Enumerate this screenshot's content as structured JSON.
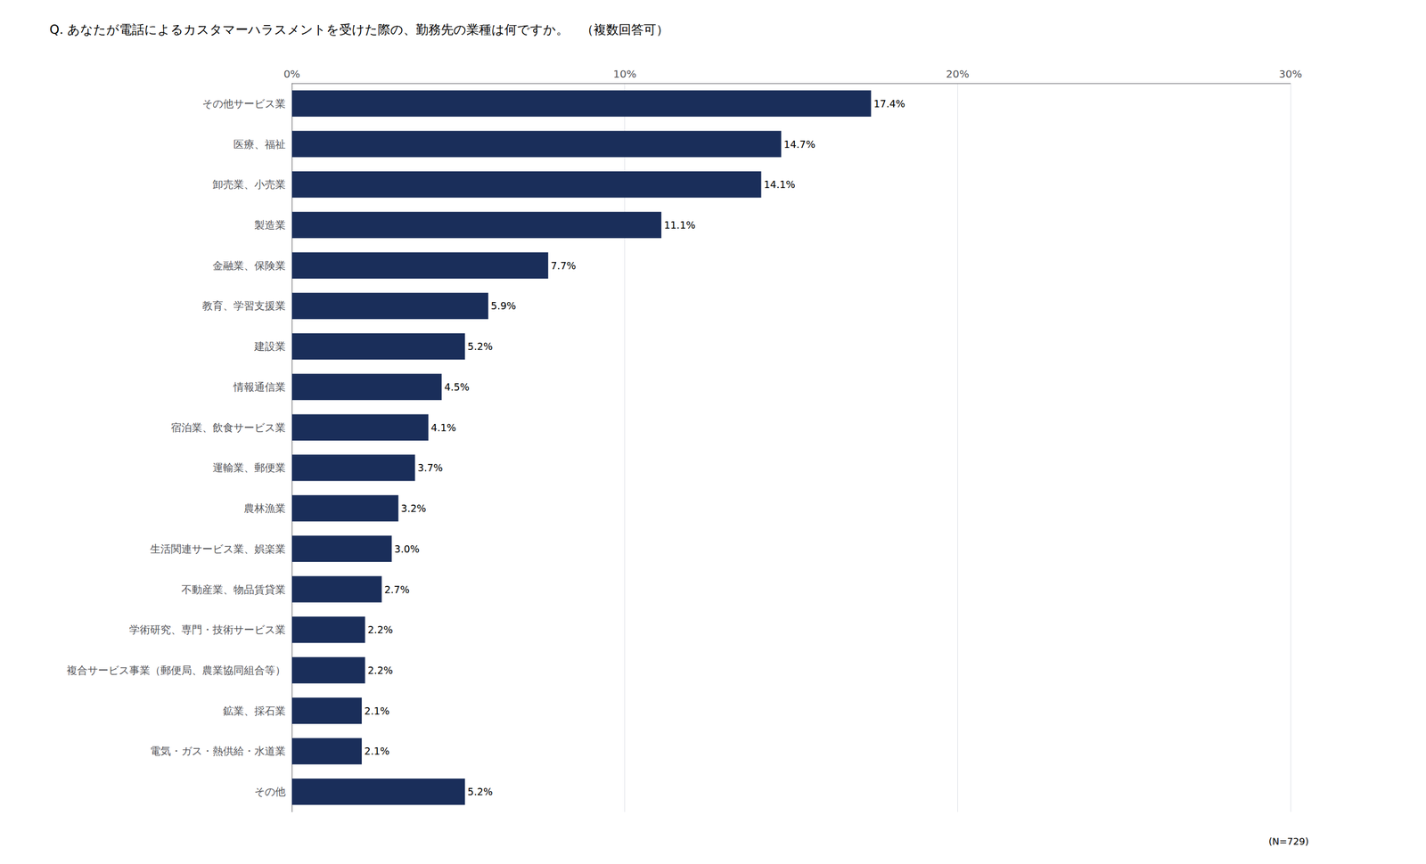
{
  "chart_data": {
    "type": "bar",
    "orientation": "horizontal",
    "title": "Q. あなたが電話によるカスタマーハラスメントを受けた際の、勤務先の業種は何ですか。　（複数回答可）",
    "categories": [
      "その他サービス業",
      "医療、福祉",
      "卸売業、小売業",
      "製造業",
      "金融業、保険業",
      "教育、学習支援業",
      "建設業",
      "情報通信業",
      "宿泊業、飲食サービス業",
      "運輸業、郵便業",
      "農林漁業",
      "生活関連サービス業、娯楽業",
      "不動産業、物品賃貸業",
      "学術研究、専門・技術サービス業",
      "複合サービス事業（郵便局、農業協同組合等）",
      "鉱業、採石業",
      "電気・ガス・熱供給・水道業",
      "その他"
    ],
    "values": [
      17.4,
      14.7,
      14.1,
      11.1,
      7.7,
      5.9,
      5.2,
      4.5,
      4.1,
      3.7,
      3.2,
      3.0,
      2.7,
      2.2,
      2.2,
      2.1,
      2.1,
      5.2
    ],
    "value_labels": [
      "17.4%",
      "14.7%",
      "14.1%",
      "11.1%",
      "7.7%",
      "5.9%",
      "5.2%",
      "4.5%",
      "4.1%",
      "3.7%",
      "3.2%",
      "3.0%",
      "2.7%",
      "2.2%",
      "2.2%",
      "2.1%",
      "2.1%",
      "5.2%"
    ],
    "data_labels": true,
    "color": "#1a2e5a",
    "xlim": [
      0,
      30
    ],
    "xticks": [
      {
        "value": 0,
        "label": "0%"
      },
      {
        "value": 10,
        "label": "10%"
      },
      {
        "value": 20,
        "label": "20%"
      },
      {
        "value": 30,
        "label": "30%"
      }
    ],
    "grid": true,
    "annotations": [
      "(N=729)"
    ]
  }
}
